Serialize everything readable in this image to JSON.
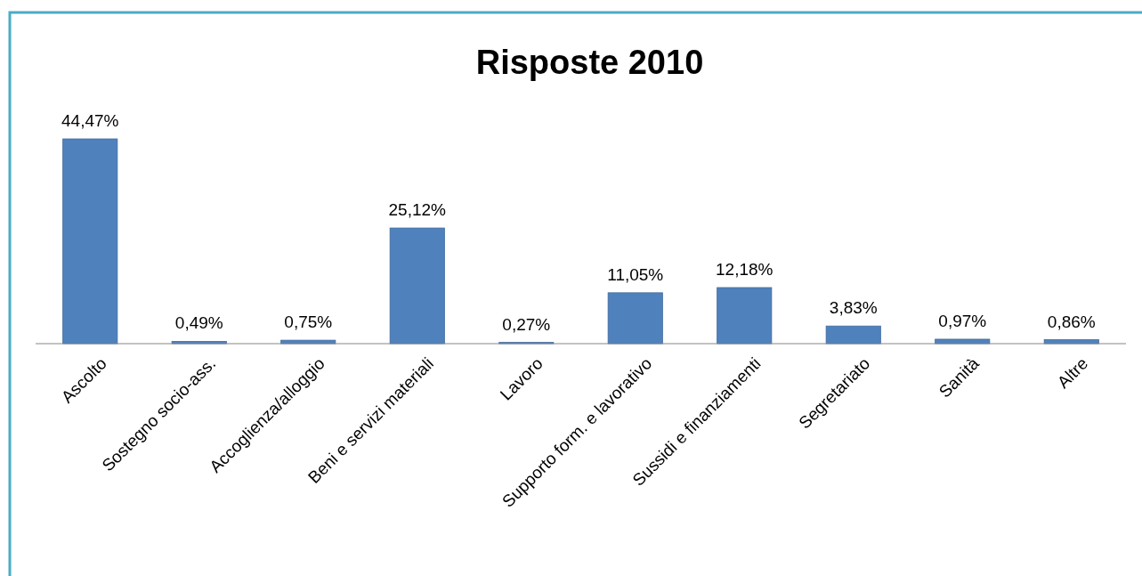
{
  "chart_data": {
    "type": "bar",
    "title": "Risposte 2010",
    "categories": [
      "Ascolto",
      "Sostegno socio-ass.",
      "Accoglienza/alloggio",
      "Beni e servizi materiali",
      "Lavoro",
      "Supporto form. e lavorativo",
      "Sussidi e finanziamenti",
      "Segretariato",
      "Sanità",
      "Altre"
    ],
    "values": [
      44.47,
      0.49,
      0.75,
      25.12,
      0.27,
      11.05,
      12.18,
      3.83,
      0.97,
      0.86
    ],
    "value_labels": [
      "44,47%",
      "0,49%",
      "0,75%",
      "25,12%",
      "0,27%",
      "11,05%",
      "12,18%",
      "3,83%",
      "0,97%",
      "0,86%"
    ],
    "color": "#4f81bd"
  }
}
